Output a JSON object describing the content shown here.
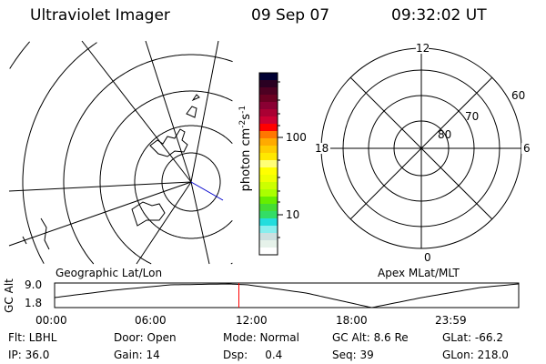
{
  "header": {
    "title": "Ultraviolet Imager",
    "date": "09 Sep 07",
    "time": "09:32:02 UT"
  },
  "colorbar": {
    "label": "photon cm^-2 s^-1",
    "label_main": "photon cm",
    "exp1": "-2",
    "s": "s",
    "exp2": "-1",
    "ticks": [
      "100",
      "10"
    ],
    "colors": [
      "#000033",
      "#2a0022",
      "#4d0022",
      "#6b0022",
      "#8a0033",
      "#aa0033",
      "#cc0033",
      "#ff0000",
      "#ff7700",
      "#ffaa00",
      "#ffcc00",
      "#ffe800",
      "#ffff77",
      "#ffff00",
      "#eeff00",
      "#ccff00",
      "#aaff00",
      "#66ee00",
      "#44dd33",
      "#33dd66",
      "#22dddd",
      "#88eeee",
      "#cce0e0",
      "#e6f2ea",
      "#ffffff"
    ]
  },
  "geo_panel": {
    "label": "Geographic Lat/Lon"
  },
  "polar_panel": {
    "label": "Apex MLat/MLT",
    "mlt_labels": [
      "12",
      "18",
      "6",
      "0"
    ],
    "lat_labels": [
      "60",
      "70",
      "80"
    ]
  },
  "timeline": {
    "ylabel": "GC Alt",
    "y_ticks": [
      "9.0",
      "1.8"
    ],
    "x_ticks": [
      "00:00",
      "06:00",
      "12:00",
      "18:00",
      "23:59"
    ],
    "current_time_hours": 9.53,
    "marker_color": "#ff0000"
  },
  "info": {
    "row1": [
      "Flt: LBHL",
      "Door: Open",
      "Mode: Normal",
      "GC Alt: 8.6 Re",
      "GLat: -66.2"
    ],
    "row2": [
      "IP: 36.0",
      "Gain: 14",
      "Dsp:     0.4",
      "Seq: 39",
      "GLon: 218.0"
    ]
  }
}
